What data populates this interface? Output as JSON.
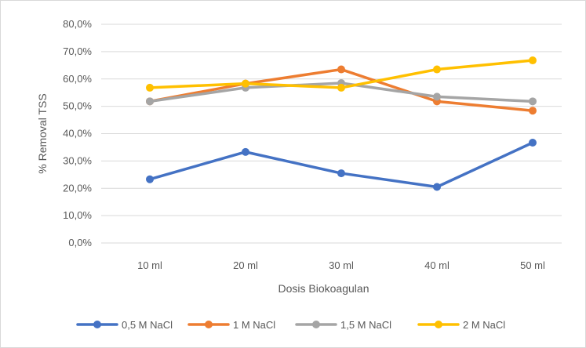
{
  "chart_data": {
    "type": "line",
    "title": "",
    "xlabel": "Dosis Biokoagulan",
    "ylabel": "% Removal TSS",
    "categories": [
      "10 ml",
      "20 ml",
      "30 ml",
      "40 ml",
      "50 ml"
    ],
    "ylim": [
      0,
      80
    ],
    "yticks": [
      0,
      10,
      20,
      30,
      40,
      50,
      60,
      70,
      80
    ],
    "ytick_labels": [
      "0,0%",
      "10,0%",
      "20,0%",
      "30,0%",
      "40,0%",
      "50,0%",
      "60,0%",
      "70,0%",
      "80,0%"
    ],
    "grid": true,
    "legend_position": "bottom",
    "series": [
      {
        "name": "0,5 M NaCl",
        "color": "#4472C4",
        "values": [
          23.3,
          33.3,
          25.5,
          20.5,
          36.7
        ]
      },
      {
        "name": "1 M NaCl",
        "color": "#ED7D31",
        "values": [
          51.8,
          58.3,
          63.5,
          51.8,
          48.4
        ]
      },
      {
        "name": "1,5 M NaCl",
        "color": "#A5A5A5",
        "values": [
          51.8,
          56.8,
          58.5,
          53.5,
          51.8
        ]
      },
      {
        "name": "2 M NaCl",
        "color": "#FFC000",
        "values": [
          56.8,
          58.3,
          56.8,
          63.5,
          66.8
        ]
      }
    ]
  }
}
